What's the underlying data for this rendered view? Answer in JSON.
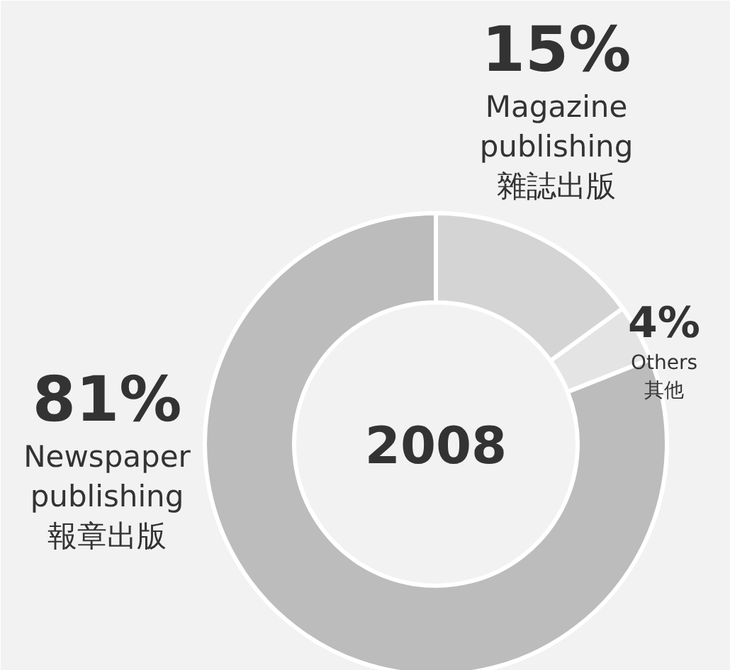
{
  "chart_data": {
    "type": "donut",
    "title": "2008",
    "categories": [
      "Magazine\npublishing\n雜誌出版",
      "Others\n其他",
      "Newspaper\npublishing\n報章出版"
    ],
    "values": [
      15,
      4,
      81
    ],
    "value_labels": [
      "15%",
      "4%",
      "81%"
    ],
    "colors": [
      "#d4d4d4",
      "#e4e4e4",
      "#bcbcbc"
    ]
  }
}
